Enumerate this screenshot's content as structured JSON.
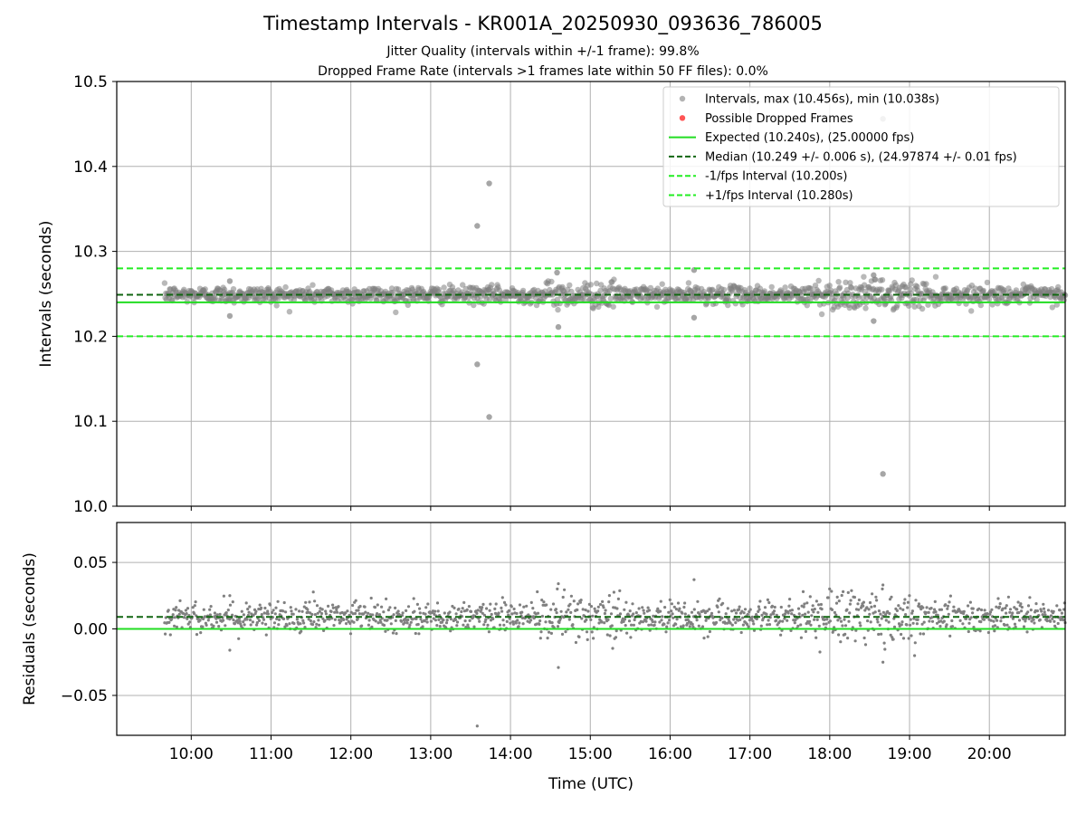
{
  "chart_data": [
    {
      "type": "scatter",
      "panel": "intervals",
      "title": "Timestamp Intervals - KR001A_20250930_093636_786005",
      "subtitle_lines": [
        "Jitter Quality (intervals within +/-1 frame): 99.8%",
        "Dropped Frame Rate (intervals >1 frames late within 50 FF files): 0.0%"
      ],
      "ylabel": "Intervals (seconds)",
      "ylim": [
        10.0,
        10.5
      ],
      "yticks": [
        10.0,
        10.1,
        10.2,
        10.3,
        10.4,
        10.5
      ],
      "ytick_labels": [
        "10.0",
        "10.1",
        "10.2",
        "10.3",
        "10.4",
        "10.5"
      ],
      "xlim": [
        "09:04",
        "20:57"
      ],
      "grid": true,
      "legend_position": "top-right",
      "legend": [
        "Intervals, max (10.456s), min (10.038s)",
        "Possible Dropped Frames",
        "Expected (10.240s), (25.00000 fps)",
        "Median (10.249 +/- 0.006 s), (24.97874 +/- 0.01 fps)",
        "-1/fps Interval (10.200s)",
        "+1/fps Interval (10.280s)"
      ],
      "data_start": "09:40",
      "data_end": "20:57",
      "expected": 10.24,
      "median": 10.249,
      "median_std": 0.006,
      "minus_fps_interval": 10.2,
      "plus_fps_interval": 10.28,
      "max": 10.456,
      "min": 10.038,
      "outliers": [
        {
          "x": "13:35",
          "y": 10.33
        },
        {
          "x": "13:44",
          "y": 10.38
        },
        {
          "x": "13:35",
          "y": 10.167
        },
        {
          "x": "13:44",
          "y": 10.105
        },
        {
          "x": "18:40",
          "y": 10.456
        },
        {
          "x": "18:40",
          "y": 10.038
        },
        {
          "x": "14:35",
          "y": 10.275
        },
        {
          "x": "14:36",
          "y": 10.211
        },
        {
          "x": "16:18",
          "y": 10.278
        },
        {
          "x": "16:18",
          "y": 10.222
        },
        {
          "x": "10:29",
          "y": 10.265
        },
        {
          "x": "10:29",
          "y": 10.224
        },
        {
          "x": "18:33",
          "y": 10.272
        },
        {
          "x": "18:33",
          "y": 10.218
        }
      ],
      "colors": {
        "intervals": "#808080",
        "dropped": "#ff5555",
        "expected": "#22dd22",
        "median": "#116611",
        "fps_interval": "#22ee22",
        "grid": "#b0b0b0"
      }
    },
    {
      "type": "scatter",
      "panel": "residuals",
      "xlabel": "Time (UTC)",
      "ylabel": "Residuals (seconds)",
      "ylim": [
        -0.08,
        0.08
      ],
      "yticks": [
        -0.05,
        0.0,
        0.05
      ],
      "ytick_labels": [
        "−0.05",
        "0.00",
        "0.05"
      ],
      "xticks": [
        "10:00",
        "11:00",
        "12:00",
        "13:00",
        "14:00",
        "15:00",
        "16:00",
        "17:00",
        "18:00",
        "19:00",
        "20:00"
      ],
      "xlim": [
        "09:04",
        "20:57"
      ],
      "grid": true,
      "median_line": 0.009,
      "expected_line_start": 0.0,
      "expected_line_end": 0.0,
      "outliers": [
        {
          "x": "13:35",
          "y": -0.073
        },
        {
          "x": "14:36",
          "y": -0.029
        },
        {
          "x": "14:36",
          "y": 0.034
        },
        {
          "x": "16:18",
          "y": 0.037
        },
        {
          "x": "10:29",
          "y": 0.025
        },
        {
          "x": "10:29",
          "y": -0.016
        },
        {
          "x": "18:40",
          "y": -0.025
        },
        {
          "x": "18:40",
          "y": 0.033
        }
      ]
    }
  ]
}
